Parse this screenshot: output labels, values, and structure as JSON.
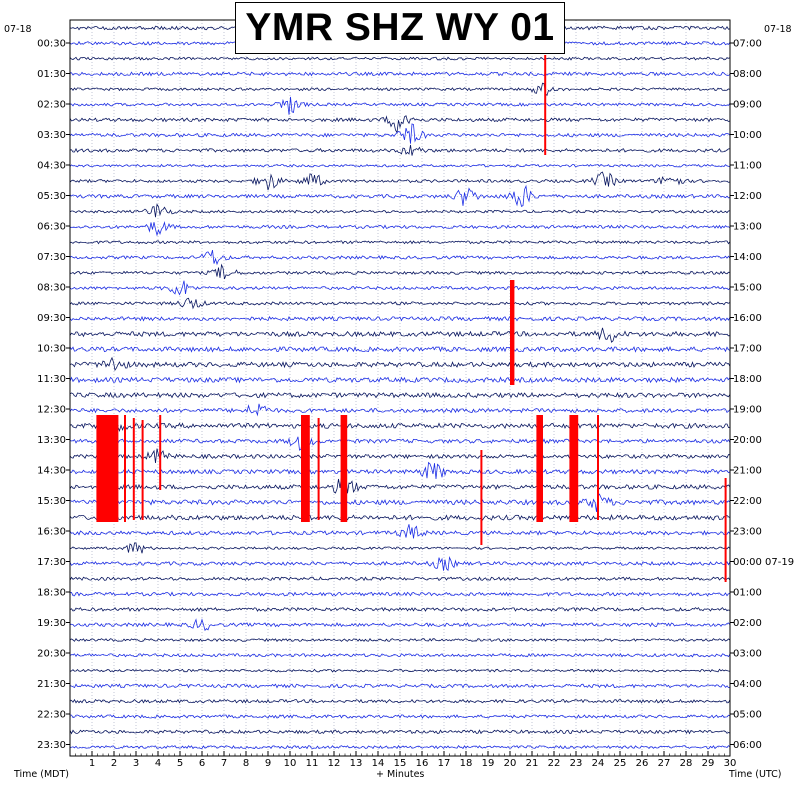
{
  "chart_data": {
    "type": "line",
    "title": "YMR SHZ WY 01",
    "xlabel": "+ Minutes",
    "left_axis_caption": "Time (MDT)",
    "right_axis_caption": "Time (UTC)",
    "date_left": "07-18",
    "date_right": "07-18",
    "x_range": [
      0,
      30
    ],
    "x_ticks": [
      "1",
      "2",
      "3",
      "4",
      "5",
      "6",
      "7",
      "8",
      "9",
      "10",
      "11",
      "12",
      "13",
      "14",
      "15",
      "16",
      "17",
      "18",
      "19",
      "20",
      "21",
      "22",
      "23",
      "24",
      "25",
      "26",
      "27",
      "28",
      "29",
      "30"
    ],
    "left_time_labels": [
      "00:30",
      "01:30",
      "02:30",
      "03:30",
      "04:30",
      "05:30",
      "06:30",
      "07:30",
      "08:30",
      "09:30",
      "10:30",
      "11:30",
      "12:30",
      "13:30",
      "14:30",
      "15:30",
      "16:30",
      "17:30",
      "18:30",
      "19:30",
      "20:30",
      "21:30",
      "22:30",
      "23:30"
    ],
    "right_time_labels": [
      "07:00",
      "08:00",
      "09:00",
      "10:00",
      "11:00",
      "12:00",
      "13:00",
      "14:00",
      "15:00",
      "16:00",
      "17:00",
      "18:00",
      "19:00",
      "20:00",
      "21:00",
      "22:00",
      "23:00",
      "00:00 07-19",
      "01:00",
      "02:00",
      "03:00",
      "04:00",
      "05:00",
      "06:00"
    ],
    "trace_rows": 48,
    "trace_minutes": 30,
    "colors": {
      "trace_dark": "#0a1760",
      "trace_bright": "#1e2fe6",
      "clipped": "#ff0000",
      "grid": "#9aa0b8"
    },
    "grid": true
  }
}
